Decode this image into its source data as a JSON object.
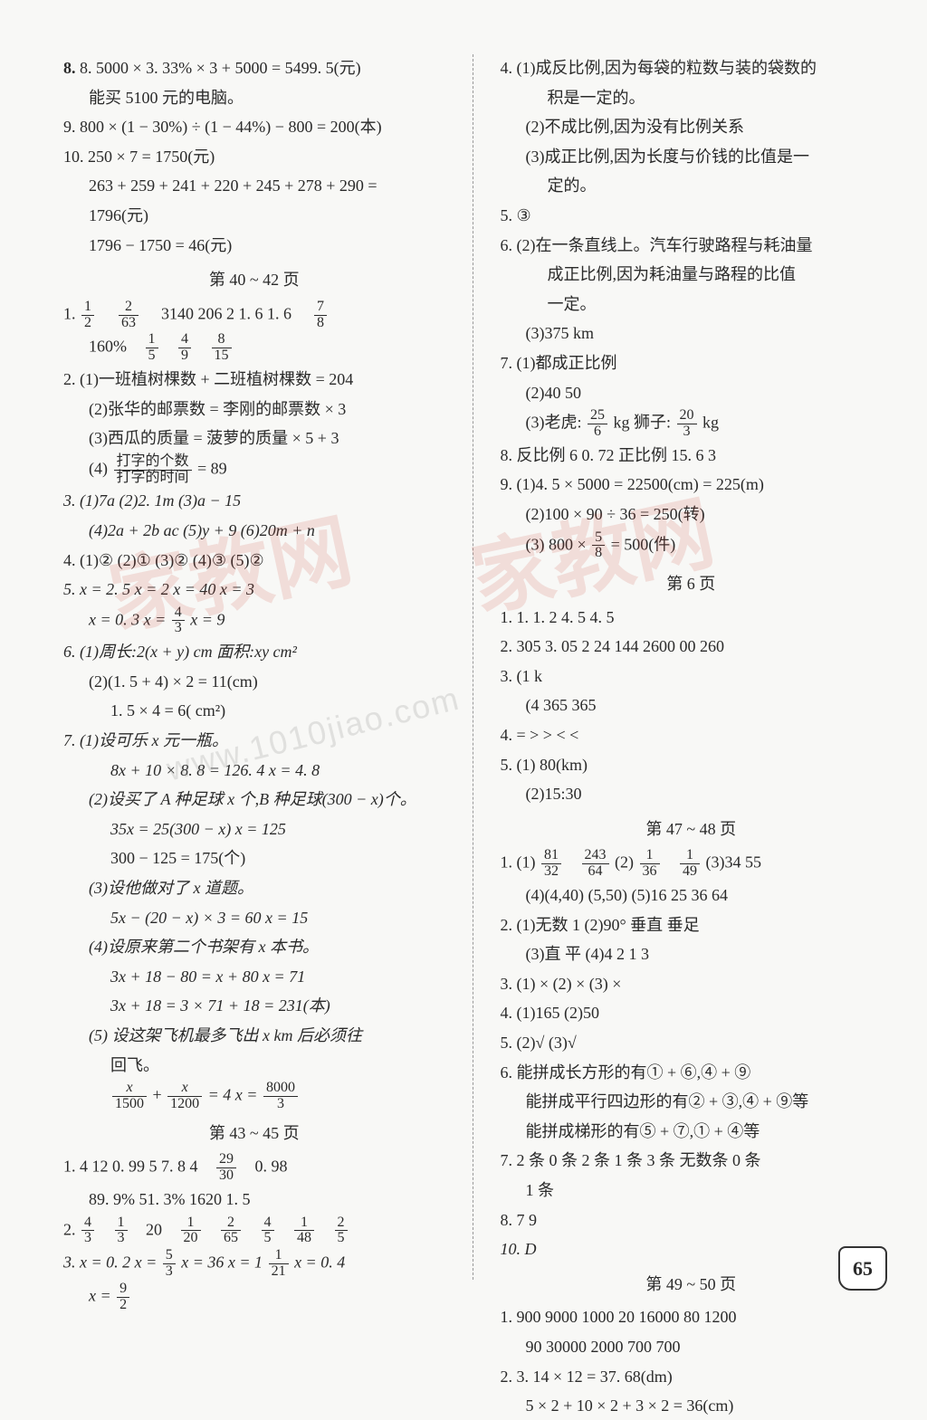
{
  "left": {
    "l8a": "8. 5000 × 3. 33%  × 3 + 5000 = 5499. 5(元)",
    "l8b": "能买 5100 元的电脑。",
    "l9": "9. 800 × (1 − 30%) ÷ (1 − 44%) − 800 = 200(本)",
    "l10a": "10. 250 × 7 = 1750(元)",
    "l10b": "263 + 259 + 241 + 220 + 245 + 278 + 290 =",
    "l10c": "1796(元)",
    "l10d": "1796 − 1750 = 46(元)",
    "hdr1": "第 40 ~ 42 页",
    "q1a_pre": "1.",
    "q1a_f1n": "1",
    "q1a_f1d": "2",
    "q1a_f2n": "2",
    "q1a_f2d": "63",
    "q1a_rest": "3140   206   2   1. 6   1. 6",
    "q1a_f3n": "7",
    "q1a_f3d": "8",
    "q1b_pre": "160%",
    "q1b_f1n": "1",
    "q1b_f1d": "5",
    "q1b_f2n": "4",
    "q1b_f2d": "9",
    "q1b_f3n": "8",
    "q1b_f3d": "15",
    "q2a": "2. (1)一班植树棵数 + 二班植树棵数 = 204",
    "q2b": "(2)张华的邮票数 = 李刚的邮票数 × 3",
    "q2c": "(3)西瓜的质量 = 菠萝的质量 × 5 + 3",
    "q2d_pre": "(4)",
    "q2d_fn": "打字的个数",
    "q2d_fd": "打字的时间",
    "q2d_post": "= 89",
    "q3a": "3. (1)7a   (2)2. 1m   (3)a − 15",
    "q3b": "(4)2a + 2b   ac   (5)y + 9   (6)20m + n",
    "q4": "4. (1)②   (2)①   (3)②   (4)③   (5)②",
    "q5a": "5. x = 2. 5   x = 2   x = 40   x = 3",
    "q5b_pre": "x = 0. 3   x =",
    "q5b_fn": "4",
    "q5b_fd": "3",
    "q5b_post": "   x = 9",
    "q6a": "6. (1)周长:2(x + y) cm   面积:xy cm²",
    "q6b": "(2)(1. 5 + 4) × 2 = 11(cm)",
    "q6c": "1. 5 × 4 = 6( cm²)",
    "q7a": "7. (1)设可乐 x 元一瓶。",
    "q7b": "8x + 10 × 8. 8 = 126. 4        x = 4. 8",
    "q7c": "(2)设买了 A 种足球 x 个,B 种足球(300 − x)个。",
    "q7d": "35x = 25(300 − x)       x = 125",
    "q7e": "300 − 125 = 175(个)",
    "q7f": "(3)设他做对了 x 道题。",
    "q7g": "5x − (20 − x) × 3 = 60       x = 15",
    "q7h": "(4)设原来第二个书架有 x 本书。",
    "q7i": "3x + 18 − 80 = x + 80       x = 71",
    "q7j": "3x + 18 = 3 × 71 + 18 = 231(本)",
    "q7k": "(5) 设这架飞机最多飞出 x km 后必须往",
    "q7l": "回飞。",
    "q7m_f1n": "x",
    "q7m_f1d": "1500",
    "q7m_mid": "+",
    "q7m_f2n": "x",
    "q7m_f2d": "1200",
    "q7m_eq": "= 4      x =",
    "q7m_f3n": "8000",
    "q7m_f3d": "3",
    "hdr2": "第 43 ~ 45 页",
    "s1a_pre": "1. 4   12   0. 99   5   7. 8   4",
    "s1a_fn": "29",
    "s1a_fd": "30",
    "s1a_post": "0. 98",
    "s1b": "89. 9%   51. 3%   1620   1. 5",
    "s2_pre": "2.",
    "s2_v1n": "4",
    "s2_v1d": "3",
    "s2_v2n": "1",
    "s2_v2d": "3",
    "s2_mid": "20",
    "s2_v3n": "1",
    "s2_v3d": "20",
    "s2_v4n": "2",
    "s2_v4d": "65",
    "s2_v5n": "4",
    "s2_v5d": "5",
    "s2_v6n": "1",
    "s2_v6d": "48",
    "s2_v7n": "2",
    "s2_v7d": "5",
    "s3_pre": "3. x = 0. 2   x =",
    "s3_f1n": "5",
    "s3_f1d": "3",
    "s3_mid": "   x = 36   x = 1",
    "s3_f2n": "1",
    "s3_f2d": "21",
    "s3_post": "   x = 0. 4",
    "s3b_pre": "x =",
    "s3b_fn": "9",
    "s3b_fd": "2"
  },
  "right": {
    "r4a": "4. (1)成反比例,因为每袋的粒数与装的袋数的",
    "r4b": "积是一定的。",
    "r4c": "(2)不成比例,因为没有比例关系",
    "r4d": "(3)成正比例,因为长度与价钱的比值是一",
    "r4e": "定的。",
    "r5": "5. ③",
    "r6a": "6. (2)在一条直线上。汽车行驶路程与耗油量",
    "r6b": "成正比例,因为耗油量与路程的比值",
    "r6c": "一定。",
    "r6d": "(3)375 km",
    "r7a": "7. (1)都成正比例",
    "r7b": "(2)40   50",
    "r7c_pre": "(3)老虎:",
    "r7c_f1n": "25",
    "r7c_f1d": "6",
    "r7c_mid": " kg   狮子:",
    "r7c_f2n": "20",
    "r7c_f2d": "3",
    "r7c_post": " kg",
    "r8": "8. 反比例   6   0. 72   正比例   15. 6   3",
    "r9a": "9. (1)4. 5 × 5000 = 22500(cm) = 225(m)",
    "r9b": "(2)100 × 90 ÷ 36 = 250(转)",
    "r9c_pre": "(3)",
    "r9c_txt": "800 ×",
    "r9c_fn": "5",
    "r9c_fd": "8",
    "r9c_post": "= 500(件)",
    "r9d": " ",
    "hdr3": "第   6 页",
    "p1": "1. 1.       1.              2   4. 5   4. 5",
    "p2": "2. 305   3. 05   2   24   144   2600 00   260",
    "p3a": "3. (1 k",
    "p3b": "(4      365       365",
    "p4": "4. =    >    >    <    <",
    "p5a": "5. (1)        80(km)",
    "p5b": "(2)15:30",
    "hdr4": "第 47 ~ 48 页",
    "t1_pre": "1. (1)",
    "t1_f1n": "81",
    "t1_f1d": "32",
    "t1_f2n": "243",
    "t1_f2d": "64",
    "t1_mid": "  (2)",
    "t1_f3n": "1",
    "t1_f3d": "36",
    "t1_f4n": "1",
    "t1_f4d": "49",
    "t1_post": "  (3)34   55",
    "t1b": "(4)(4,40)   (5,50)   (5)16   25   36   64",
    "t2a": "2. (1)无数   1   (2)90°   垂直   垂足",
    "t2b": "(3)直   平   (4)4   2   1   3",
    "t3": "3. (1) ×   (2) ×   (3) ×",
    "t4": "4. (1)165   (2)50",
    "t5": "5. (2)√   (3)√",
    "t6a": "6. 能拼成长方形的有① + ⑥,④ + ⑨",
    "t6b": "能拼成平行四边形的有② + ③,④ + ⑨等",
    "t6c": "能拼成梯形的有⑤ + ⑦,① + ④等",
    "t7a": "7. 2 条   0 条   2 条   1 条   3 条   无数条   0 条",
    "t7b": "1 条",
    "t8": "8. 7   9",
    "t10": "10. D",
    "hdr5": "第 49 ~ 50 页",
    "u1a": "1. 900   9000   1000   20   16000   80   1200",
    "u1b": "90   30000   2000   700   700",
    "u2a": "2. 3. 14 × 12 = 37. 68(dm)",
    "u2b": "5 × 2 + 10 × 2 + 3 × 2 = 36(cm)"
  },
  "pagenum": "65",
  "wm_text": "家教网",
  "wm_url": "www.1010jiao.com"
}
